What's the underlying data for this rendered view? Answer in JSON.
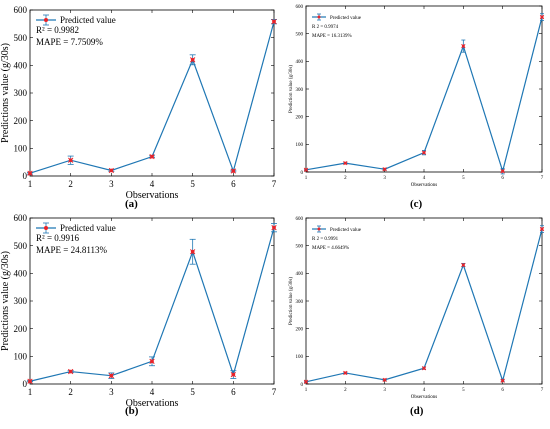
{
  "chart_data": [
    {
      "panel": "(a)",
      "type": "line",
      "xlabel": "Observations",
      "ylabel": "Predictions value (g/30s)",
      "x": [
        1,
        2,
        3,
        4,
        5,
        6,
        7
      ],
      "xlim": [
        1,
        7
      ],
      "ylim": [
        0,
        600
      ],
      "yticks": [
        0,
        100,
        200,
        300,
        400,
        500,
        600
      ],
      "legend_entry": "Predicted value",
      "legend_position": "top-left",
      "annotation_r2": "R² = 0.9982",
      "annotation_mape": "MAPE = 7.7509%",
      "series": [
        {
          "values": [
            10,
            57,
            20,
            70,
            420,
            18,
            558
          ],
          "error": [
            3,
            15,
            3,
            3,
            18,
            3,
            8
          ]
        }
      ],
      "colors": {
        "line": "#1f77b4",
        "marker": "#e8232a"
      }
    },
    {
      "panel": "(b)",
      "type": "line",
      "xlabel": "Observations",
      "ylabel": "Predictions value (g/30s)",
      "x": [
        1,
        2,
        3,
        4,
        5,
        6,
        7
      ],
      "xlim": [
        1,
        7
      ],
      "ylim": [
        0,
        600
      ],
      "yticks": [
        0,
        100,
        200,
        300,
        400,
        500,
        600
      ],
      "legend_entry": "Predicted value",
      "legend_position": "top-left",
      "annotation_r2": "R² = 0.9916",
      "annotation_mape": "MAPE = 24.8113%",
      "series": [
        {
          "values": [
            10,
            45,
            30,
            82,
            478,
            34,
            565
          ],
          "error": [
            2,
            4,
            10,
            16,
            45,
            14,
            15
          ]
        }
      ],
      "colors": {
        "line": "#1f77b4",
        "marker": "#e8232a"
      }
    },
    {
      "panel": "(c)",
      "type": "line",
      "xlabel": "Observations",
      "ylabel": "Prediction value (g/30s)",
      "x": [
        1,
        2,
        3,
        4,
        5,
        6,
        7
      ],
      "xlim": [
        1,
        7
      ],
      "ylim": [
        0,
        600
      ],
      "yticks": [
        0,
        100,
        200,
        300,
        400,
        500,
        600
      ],
      "legend_entry": "Predicted value",
      "legend_position": "top-left",
      "annotation_r2": "R 2 = 0.9974",
      "annotation_mape": "MAPE = 16.3139%",
      "series": [
        {
          "values": [
            8,
            32,
            10,
            70,
            455,
            3,
            560
          ],
          "error": [
            2,
            3,
            3,
            8,
            22,
            10,
            12
          ]
        }
      ],
      "colors": {
        "line": "#1f77b4",
        "marker": "#e8232a"
      }
    },
    {
      "panel": "(d)",
      "type": "line",
      "xlabel": "Observations",
      "ylabel": "Prediction value (g/30s)",
      "x": [
        1,
        2,
        3,
        4,
        5,
        6,
        7
      ],
      "xlim": [
        1,
        7
      ],
      "ylim": [
        0,
        600
      ],
      "yticks": [
        0,
        100,
        200,
        300,
        400,
        500,
        600
      ],
      "legend_entry": "Predicted value",
      "legend_position": "top-left",
      "annotation_r2": "R 2 = 0.9991",
      "annotation_mape": "MAPE = 4.6649%",
      "series": [
        {
          "values": [
            8,
            40,
            15,
            57,
            430,
            12,
            560
          ],
          "error": [
            2,
            3,
            2,
            4,
            6,
            3,
            12
          ]
        }
      ],
      "colors": {
        "line": "#1f77b4",
        "marker": "#e8232a"
      }
    }
  ]
}
